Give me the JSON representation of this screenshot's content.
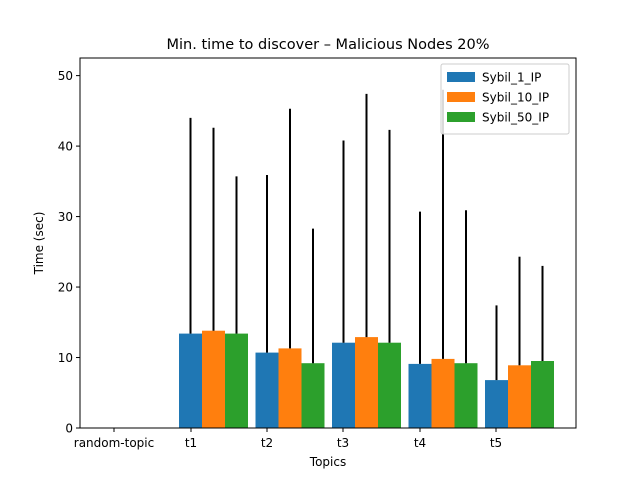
{
  "chart_data": {
    "type": "bar",
    "title": "Min. time to discover – Malicious Nodes 20%",
    "xlabel": "Topics",
    "ylabel": "Time (sec)",
    "categories": [
      "random-topic",
      "t1",
      "t2",
      "t3",
      "t4",
      "t5"
    ],
    "ylim": [
      0,
      52.5
    ],
    "yticks": [
      0,
      10,
      20,
      30,
      40,
      50
    ],
    "grid": false,
    "legend_position": "top-right",
    "series": [
      {
        "name": "Sybil_1_IP",
        "color": "#1f77b4",
        "values": [
          0,
          13.4,
          10.7,
          12.1,
          9.1,
          6.8
        ],
        "error_top": [
          0,
          44.0,
          35.9,
          40.8,
          30.7,
          17.4
        ]
      },
      {
        "name": "Sybil_10_IP",
        "color": "#ff7f0e",
        "values": [
          0,
          13.8,
          11.3,
          12.9,
          9.8,
          8.9
        ],
        "error_top": [
          0,
          42.6,
          45.3,
          47.4,
          48.0,
          24.3
        ]
      },
      {
        "name": "Sybil_50_IP",
        "color": "#2ca02c",
        "values": [
          0,
          13.4,
          9.2,
          12.1,
          9.2,
          9.5
        ],
        "error_top": [
          0,
          35.7,
          28.3,
          42.3,
          30.9,
          23.0
        ]
      }
    ]
  }
}
